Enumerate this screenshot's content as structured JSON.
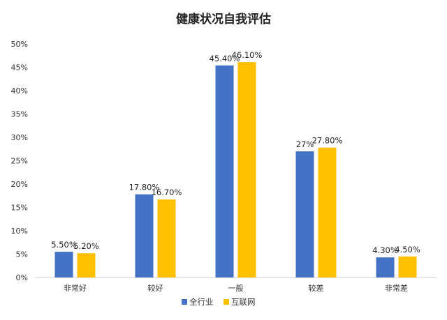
{
  "chart_data": {
    "type": "bar",
    "title": "健康状况自我评估",
    "categories": [
      "非常好",
      "较好",
      "一般",
      "较差",
      "非常差"
    ],
    "series": [
      {
        "name": "全行业",
        "color": "#4472C4",
        "values": [
          5.5,
          17.8,
          45.4,
          27,
          4.3
        ],
        "labels": [
          "5.50%",
          "17.80%",
          "45.40%",
          "27%",
          "4.30%"
        ]
      },
      {
        "name": "互联网",
        "color": "#FFC000",
        "values": [
          5.2,
          16.7,
          46.1,
          27.8,
          4.5
        ],
        "labels": [
          "5.20%",
          "16.70%",
          "46.10%",
          "27.80%",
          "4.50%"
        ]
      }
    ],
    "ylim": [
      0,
      50
    ],
    "yticks": [
      "0%",
      "5%",
      "10%",
      "15%",
      "20%",
      "25%",
      "30%",
      "35%",
      "40%",
      "45%",
      "50%"
    ],
    "grid": false,
    "legend_position": "bottom"
  }
}
